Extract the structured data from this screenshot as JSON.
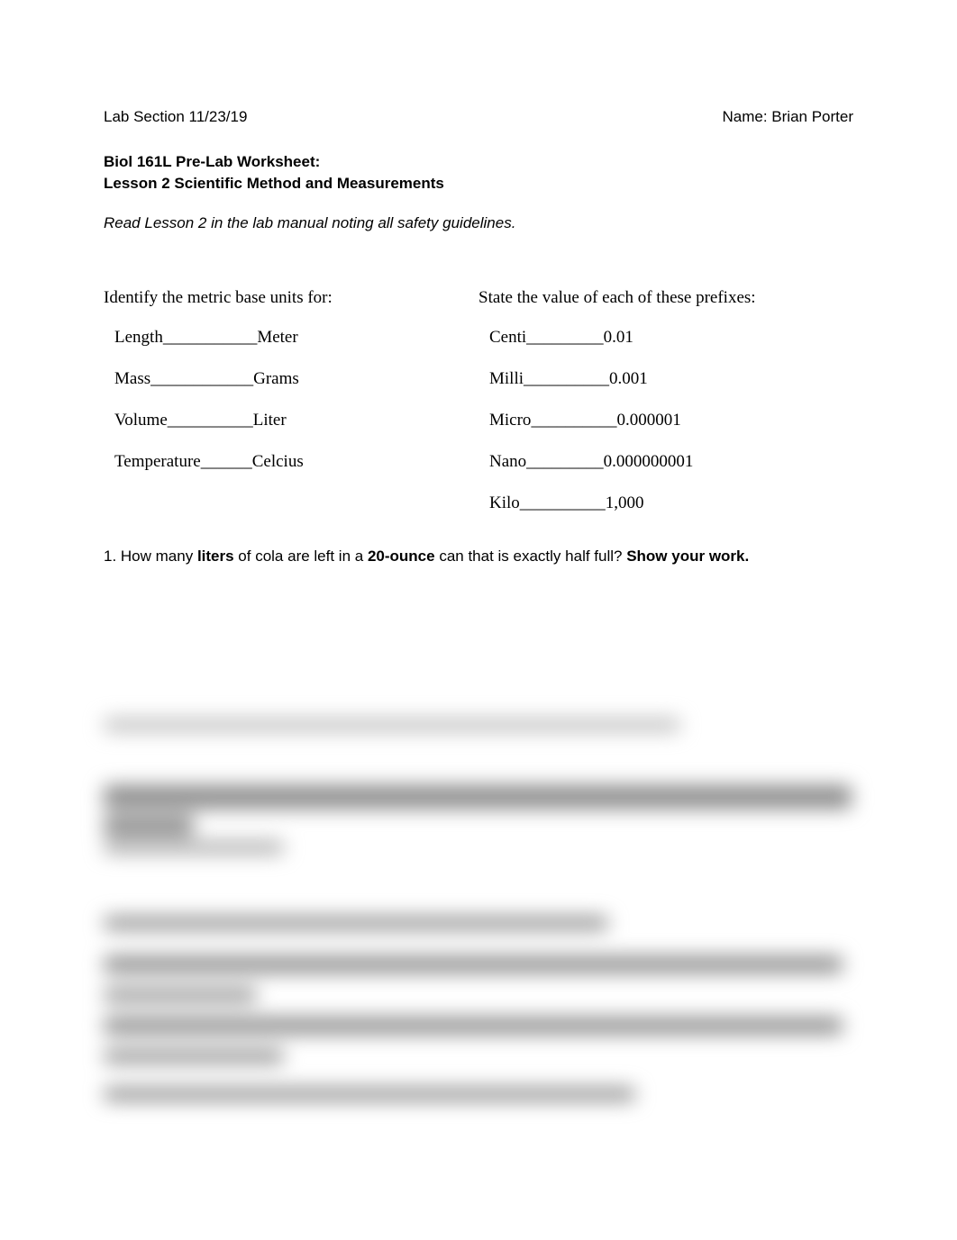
{
  "header": {
    "lab_section": "Lab Section 11/23/19",
    "name": "Name: Brian Porter"
  },
  "title": {
    "line1": "Biol 161L Pre-Lab Worksheet:",
    "line2": "Lesson 2 Scientific Method and Measurements"
  },
  "instruction": "Read Lesson 2 in the lab manual noting all safety guidelines.",
  "metric": {
    "left_heading": "Identify the metric base units for:",
    "right_heading": "State the value of each of these prefixes:",
    "units": [
      {
        "label": "Length",
        "blank": "___________",
        "value": "Meter"
      },
      {
        "label": "Mass",
        "blank": "____________",
        "value": "Grams"
      },
      {
        "label": "Volume",
        "blank": "__________",
        "value": "Liter"
      },
      {
        "label": "Temperature",
        "blank": "______",
        "value": "Celcius"
      }
    ],
    "prefixes": [
      {
        "label": "Centi",
        "blank": "_________",
        "value": "0.01"
      },
      {
        "label": "Milli",
        "blank": "__________",
        "value": "0.001"
      },
      {
        "label": "Micro",
        "blank": "__________",
        "value": "0.000001"
      },
      {
        "label": "Nano",
        "blank": "_________",
        "value": "0.000000001"
      },
      {
        "label": "Kilo",
        "blank": "__________",
        "value": "1,000"
      }
    ]
  },
  "question1": {
    "num": "1. ",
    "t1": "How many ",
    "b1": "liters",
    "t2": " of cola are left in a ",
    "b2": "20-ounce",
    "t3": " can that is exactly half full?  ",
    "b3": "Show your work."
  }
}
